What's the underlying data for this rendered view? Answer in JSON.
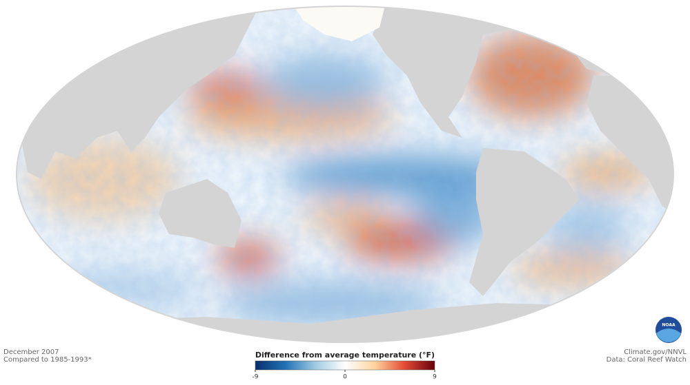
{
  "map": {
    "date": "December 2007",
    "baseline": "Compared to 1985-1993*",
    "credit": "Climate.gov/NNVL",
    "source": "Data: Coral Reef Watch",
    "logo": "NOAA"
  },
  "legend": {
    "title": "Difference from average temperature (°F)",
    "lim": [
      -9,
      9
    ],
    "ticks": [
      -9,
      0,
      9
    ],
    "colors": [
      "#08306b",
      "#2171b5",
      "#9ecae1",
      "#ffffff",
      "#fdd49e",
      "#e34a33",
      "#67000d"
    ]
  }
}
